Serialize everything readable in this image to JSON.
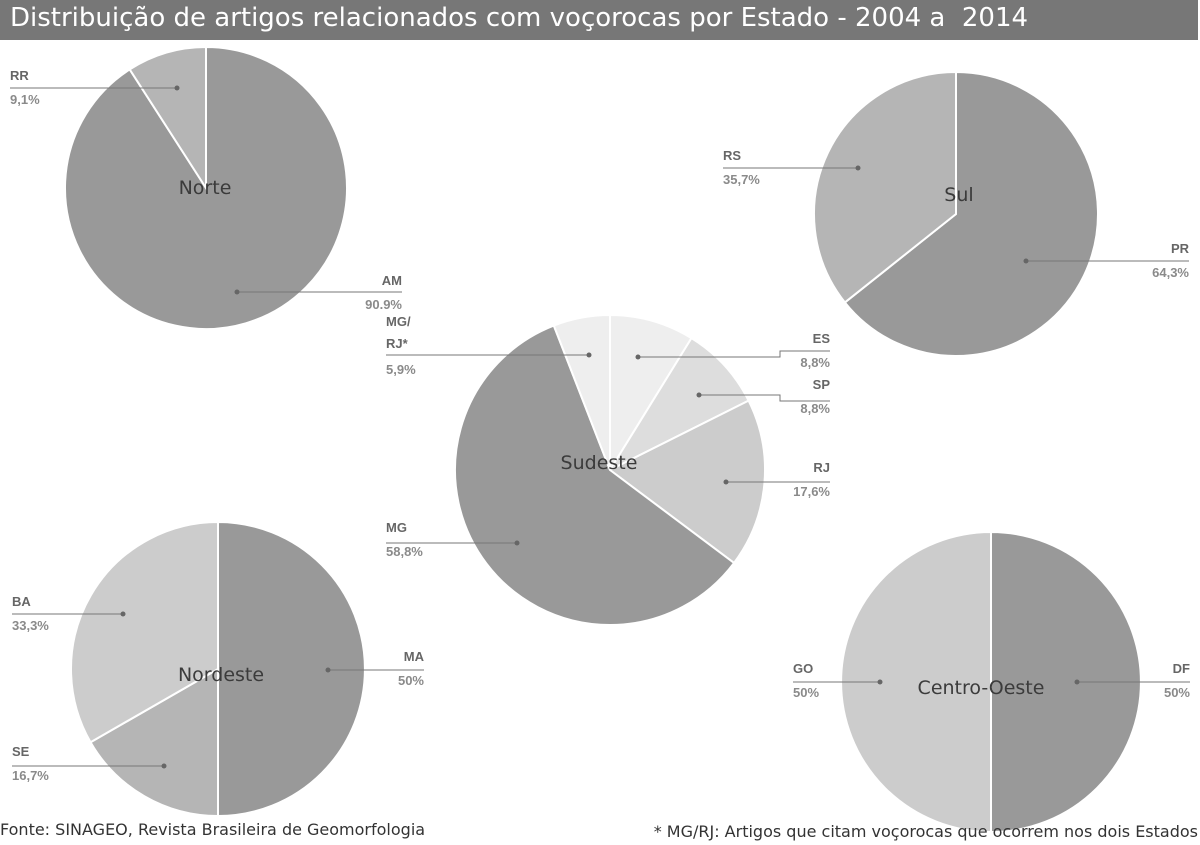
{
  "title": "Distribuição de artigos relacionados com voçorocas por Estado - 2004 a  2014",
  "footer": {
    "source": "Fonte: SINAGEO, Revista Brasileira de Geomorfologia",
    "note": "* MG/RJ: Artigos que citam voçorocas que ocorrem nos dois Estados"
  },
  "colors": {
    "title_bar": "#777777",
    "dark": "#999999",
    "mid": "#b5b5b5",
    "light": "#cccccc",
    "lighter": "#dddddd",
    "lightest": "#eeeeee"
  },
  "chart_data": [
    {
      "type": "pie",
      "region": "Norte",
      "slices": [
        {
          "name": "AM",
          "value": 90.9,
          "value_label": "90.9%",
          "color": "#999999"
        },
        {
          "name": "RR",
          "value": 9.1,
          "value_label": "9,1%",
          "color": "#b5b5b5"
        }
      ]
    },
    {
      "type": "pie",
      "region": "Sul",
      "slices": [
        {
          "name": "PR",
          "value": 64.3,
          "value_label": "64,3%",
          "color": "#999999"
        },
        {
          "name": "RS",
          "value": 35.7,
          "value_label": "35,7%",
          "color": "#b5b5b5"
        }
      ]
    },
    {
      "type": "pie",
      "region": "Sudeste",
      "slices": [
        {
          "name": "ES",
          "value": 8.8,
          "value_label": "8,8%",
          "color": "#eeeeee"
        },
        {
          "name": "SP",
          "value": 8.8,
          "value_label": "8,8%",
          "color": "#dddddd"
        },
        {
          "name": "RJ",
          "value": 17.6,
          "value_label": "17,6%",
          "color": "#cccccc"
        },
        {
          "name": "MG",
          "value": 58.8,
          "value_label": "58,8%",
          "color": "#999999"
        },
        {
          "name": "MG/ RJ*",
          "value": 5.9,
          "value_label": "5,9%",
          "color": "#eeeeee"
        }
      ]
    },
    {
      "type": "pie",
      "region": "Nordeste",
      "slices": [
        {
          "name": "MA",
          "value": 50,
          "value_label": "50%",
          "color": "#999999"
        },
        {
          "name": "SE",
          "value": 16.7,
          "value_label": "16,7%",
          "color": "#b5b5b5"
        },
        {
          "name": "BA",
          "value": 33.3,
          "value_label": "33,3%",
          "color": "#cccccc"
        }
      ]
    },
    {
      "type": "pie",
      "region": "Centro-Oeste",
      "slices": [
        {
          "name": "DF",
          "value": 50,
          "value_label": "50%",
          "color": "#999999"
        },
        {
          "name": "GO",
          "value": 50,
          "value_label": "50%",
          "color": "#cccccc"
        }
      ]
    }
  ]
}
